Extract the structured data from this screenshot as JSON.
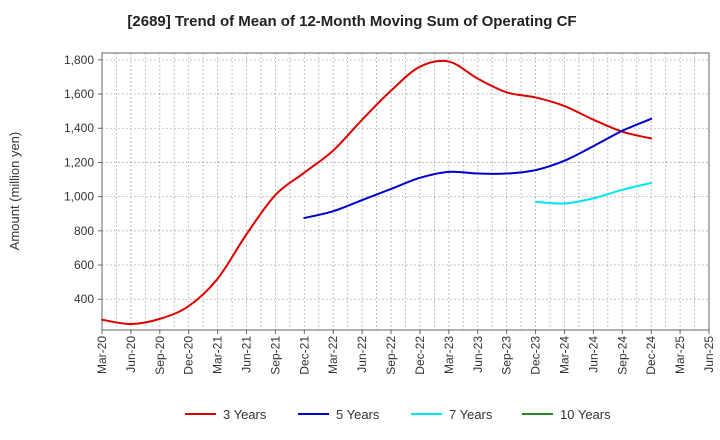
{
  "chart_data": {
    "type": "line",
    "title": "[2689]  Trend of Mean of 12-Month Moving Sum of Operating CF",
    "xlabel": "",
    "ylabel": "Amount (million yen)",
    "ylim": [
      220,
      1840
    ],
    "yticks": [
      400,
      600,
      800,
      1000,
      1200,
      1400,
      1600,
      1800
    ],
    "ytick_labels": [
      "400",
      "600",
      "800",
      "1,000",
      "1,200",
      "1,400",
      "1,600",
      "1,800"
    ],
    "categories": [
      "Mar-20",
      "Jun-20",
      "Sep-20",
      "Dec-20",
      "Mar-21",
      "Jun-21",
      "Sep-21",
      "Dec-21",
      "Mar-22",
      "Jun-22",
      "Sep-22",
      "Dec-22",
      "Mar-23",
      "Jun-23",
      "Sep-23",
      "Dec-23",
      "Mar-24",
      "Jun-24",
      "Sep-24",
      "Dec-24",
      "Mar-25",
      "Jun-25"
    ],
    "grid": true,
    "legend_position": "bottom",
    "series": [
      {
        "name": "3 Years",
        "color": "#dd0000",
        "values": [
          280,
          255,
          285,
          360,
          520,
          780,
          1010,
          1140,
          1270,
          1450,
          1620,
          1760,
          1790,
          1690,
          1610,
          1580,
          1530,
          1450,
          1380,
          1340,
          null,
          null
        ]
      },
      {
        "name": "5 Years",
        "color": "#0000cc",
        "values": [
          null,
          null,
          null,
          null,
          null,
          null,
          null,
          875,
          915,
          980,
          1045,
          1110,
          1145,
          1135,
          1135,
          1155,
          1210,
          1295,
          1385,
          1455,
          null,
          null
        ]
      },
      {
        "name": "7 Years",
        "color": "#00e5ee",
        "values": [
          null,
          null,
          null,
          null,
          null,
          null,
          null,
          null,
          null,
          null,
          null,
          null,
          null,
          null,
          null,
          970,
          960,
          990,
          1040,
          1080,
          null,
          null
        ]
      },
      {
        "name": "10 Years",
        "color": "#228B22",
        "values": [
          null,
          null,
          null,
          null,
          null,
          null,
          null,
          null,
          null,
          null,
          null,
          null,
          null,
          null,
          null,
          null,
          null,
          null,
          null,
          null,
          null,
          null
        ]
      }
    ]
  }
}
